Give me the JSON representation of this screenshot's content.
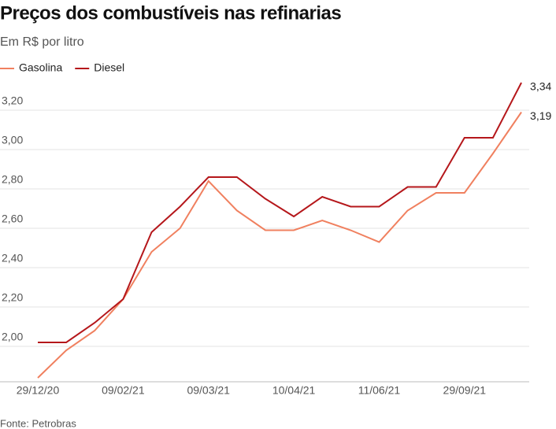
{
  "chart_data": {
    "type": "line",
    "title": "Preços dos combustíveis nas refinarias",
    "subtitle": "Em R$ por litro",
    "source": "Fonte: Petrobras",
    "categories": [
      "29/12/20",
      null,
      null,
      "09/02/21",
      null,
      null,
      "09/03/21",
      null,
      null,
      "10/04/21",
      null,
      null,
      "11/06/21",
      null,
      null,
      "29/09/21",
      null,
      null
    ],
    "series": [
      {
        "name": "Gasolina",
        "color": "#f0805f",
        "values": [
          1.84,
          1.98,
          2.08,
          2.24,
          2.48,
          2.6,
          2.84,
          2.69,
          2.59,
          2.59,
          2.64,
          2.59,
          2.53,
          2.69,
          2.78,
          2.78,
          2.98,
          3.19
        ],
        "value_labels": [
          null,
          null,
          null,
          null,
          null,
          null,
          null,
          null,
          null,
          null,
          null,
          null,
          null,
          null,
          null,
          null,
          null,
          "3,19"
        ]
      },
      {
        "name": "Diesel",
        "color": "#b5171b",
        "values": [
          2.02,
          2.02,
          2.12,
          2.24,
          2.58,
          2.71,
          2.86,
          2.86,
          2.75,
          2.66,
          2.76,
          2.71,
          2.71,
          2.81,
          2.81,
          3.06,
          3.06,
          3.34
        ],
        "value_labels": [
          null,
          null,
          null,
          null,
          null,
          null,
          null,
          null,
          null,
          null,
          null,
          null,
          null,
          null,
          null,
          null,
          null,
          "3,34"
        ]
      }
    ],
    "ylim": [
      1.82,
      3.36
    ],
    "yticks": [
      {
        "value": 2.0,
        "label": "2,00"
      },
      {
        "value": 2.2,
        "label": "2,20"
      },
      {
        "value": 2.4,
        "label": "2,40"
      },
      {
        "value": 2.6,
        "label": "2,60"
      },
      {
        "value": 2.8,
        "label": "2,80"
      },
      {
        "value": 3.0,
        "label": "3,00"
      },
      {
        "value": 3.2,
        "label": "3,20"
      }
    ],
    "grid": true,
    "legend": "top-left"
  }
}
